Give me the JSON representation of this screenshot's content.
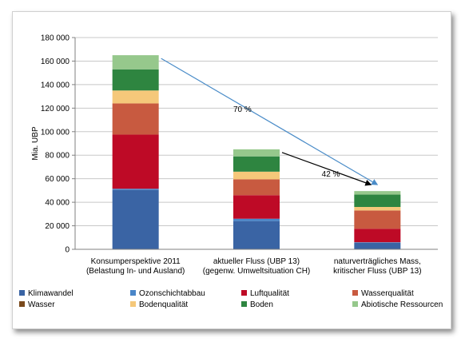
{
  "chart_data": {
    "type": "bar",
    "stacked": true,
    "ylabel": "Mia. UBP",
    "ylim": [
      0,
      180000
    ],
    "yticks": [
      "0",
      "20 000",
      "40 000",
      "60 000",
      "80 000",
      "100 000",
      "120 000",
      "140 000",
      "160 000",
      "180 000"
    ],
    "grid": true,
    "legend_position": "bottom",
    "categories": [
      [
        "Konsumperspektive 2011",
        "(Belastung In- und Ausland)"
      ],
      [
        "aktueller Fluss (UBP 13)",
        "(gegenw. Umweltsituation CH)"
      ],
      [
        "naturverträgliches Mass,",
        "kritischer Fluss (UBP 13)"
      ]
    ],
    "series": [
      {
        "name": "Klimawandel",
        "color": "#3a64a4",
        "values": [
          50500,
          24000,
          5500
        ]
      },
      {
        "name": "Ozonschichtabbau",
        "color": "#4a86c8",
        "values": [
          1000,
          2000,
          500
        ]
      },
      {
        "name": "Luftqualität",
        "color": "#be0a26",
        "values": [
          46000,
          20000,
          11500
        ]
      },
      {
        "name": "Wasserqualität",
        "color": "#c85a40",
        "values": [
          26500,
          13500,
          15500
        ]
      },
      {
        "name": "Wasser",
        "color": "#7a4a1c",
        "values": [
          0,
          0,
          0
        ]
      },
      {
        "name": "Bodenqualität",
        "color": "#f5c87a",
        "values": [
          11000,
          6500,
          3000
        ]
      },
      {
        "name": "Boden",
        "color": "#2e8540",
        "values": [
          18000,
          13000,
          10500
        ]
      },
      {
        "name": "Abiotische Ressourcen",
        "color": "#96c88c",
        "values": [
          12000,
          6000,
          3000
        ]
      }
    ],
    "annotations": [
      {
        "text": "70 %",
        "from_category": 0,
        "to_category": 2,
        "color": "#4a8cc8"
      },
      {
        "text": "42 %",
        "from_category": 1,
        "to_category": 2,
        "color": "#000000"
      }
    ]
  }
}
